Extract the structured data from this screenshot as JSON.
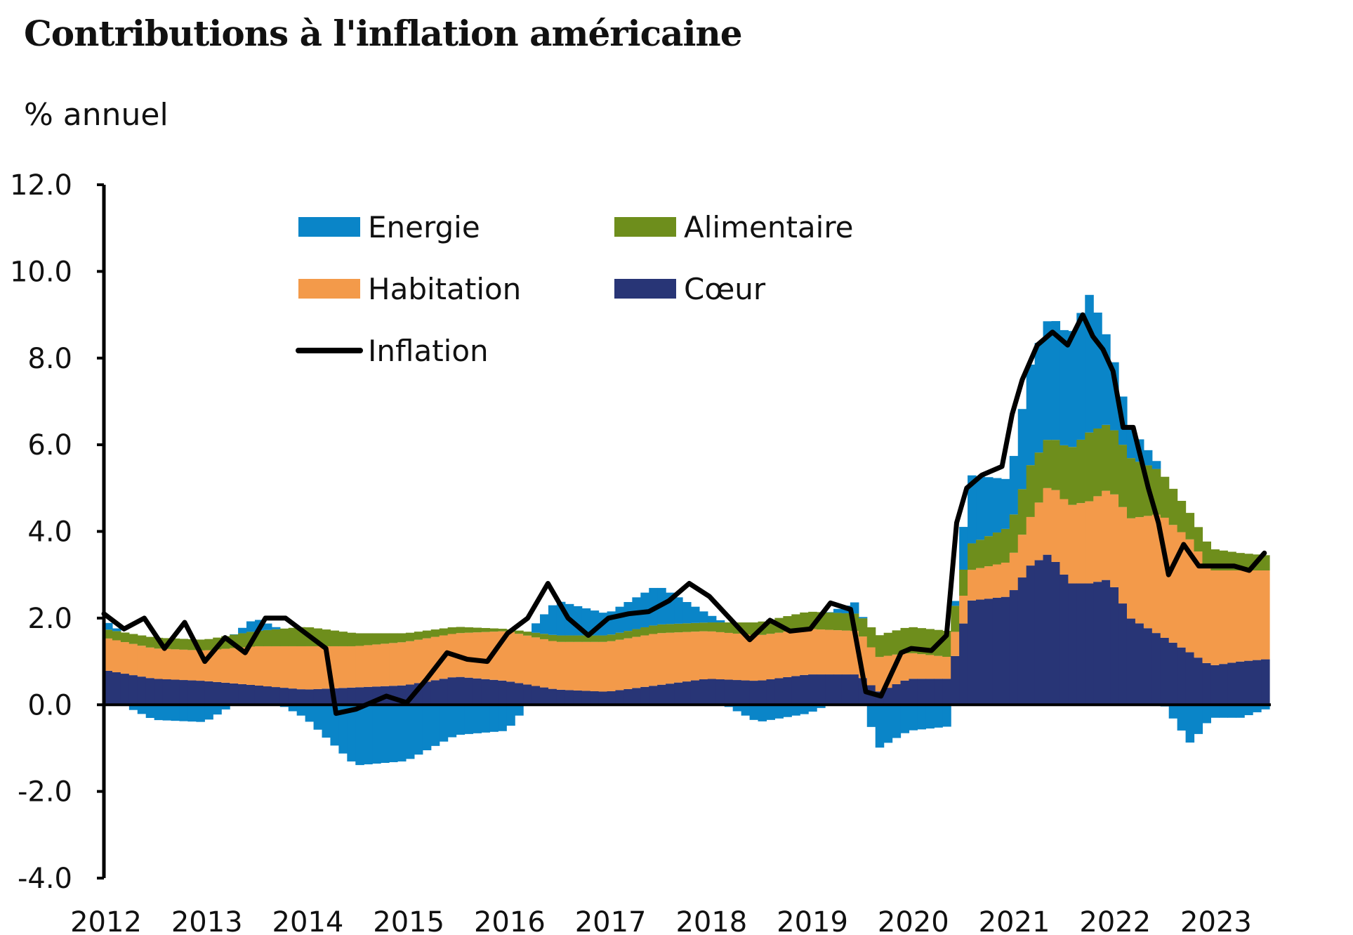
{
  "chart_data": {
    "type": "bar",
    "title": "Contributions à l'inflation américaine",
    "unit": "% annuel",
    "ylim": [
      -4.0,
      12.0
    ],
    "yticks": [
      "-4.0",
      "-2.0",
      "0.0",
      "2.0",
      "4.0",
      "6.0",
      "8.0",
      "10.0",
      "12.0"
    ],
    "xlim": [
      2012.0,
      2023.55
    ],
    "xticks": [
      "2012",
      "2013",
      "2014",
      "2015",
      "2016",
      "2017",
      "2018",
      "2019",
      "2020",
      "2021",
      "2022",
      "2023"
    ],
    "stacked": true,
    "legend_position": "top",
    "grid": false,
    "colors": {
      "energie": "#0a85c8",
      "alimentaire": "#6e8e1c",
      "habitation": "#f39a4a",
      "coeur": "#283576",
      "inflation": "#000000"
    },
    "series": [
      {
        "key": "coeur",
        "name": "Cœur",
        "x": [
          2012,
          2012.5,
          2013,
          2013.5,
          2014,
          2014.5,
          2015,
          2015.5,
          2016,
          2016.5,
          2017,
          2017.5,
          2018,
          2018.5,
          2019,
          2019.5,
          2019.7,
          2020,
          2020.4,
          2020.6,
          2021,
          2021.2,
          2021.4,
          2021.6,
          2021.8,
          2022,
          2022.2,
          2022.5,
          2022.8,
          2023,
          2023.3,
          2023.55
        ],
        "values": [
          0.8,
          0.6,
          0.55,
          0.45,
          0.35,
          0.4,
          0.45,
          0.65,
          0.55,
          0.35,
          0.3,
          0.45,
          0.6,
          0.55,
          0.7,
          0.7,
          0.3,
          0.6,
          0.6,
          2.4,
          2.5,
          3.2,
          3.5,
          2.8,
          2.8,
          2.9,
          2.0,
          1.6,
          1.2,
          0.9,
          1.0,
          1.05
        ]
      },
      {
        "key": "habitation",
        "name": "Habitation",
        "x": [
          2012,
          2012.5,
          2013,
          2013.5,
          2014,
          2014.5,
          2015,
          2015.5,
          2016,
          2016.5,
          2017,
          2017.5,
          2018,
          2018.5,
          2019,
          2019.5,
          2019.7,
          2020,
          2020.4,
          2020.6,
          2021,
          2021.2,
          2021.4,
          2021.6,
          2021.8,
          2022,
          2022.2,
          2022.5,
          2022.8,
          2023,
          2023.3,
          2023.55
        ],
        "values": [
          0.75,
          0.7,
          0.7,
          0.9,
          1.0,
          0.95,
          1.0,
          1.0,
          1.15,
          1.1,
          1.15,
          1.2,
          1.1,
          1.05,
          1.05,
          1.0,
          0.8,
          0.6,
          0.5,
          0.7,
          0.8,
          1.1,
          1.6,
          1.8,
          1.9,
          2.1,
          2.3,
          2.8,
          2.6,
          2.2,
          2.1,
          2.05
        ]
      },
      {
        "key": "alimentaire",
        "name": "Alimentaire",
        "x": [
          2012,
          2012.5,
          2013,
          2013.5,
          2014,
          2014.5,
          2015,
          2015.5,
          2016,
          2016.5,
          2017,
          2017.5,
          2018,
          2018.5,
          2019,
          2019.5,
          2019.7,
          2020,
          2020.4,
          2020.6,
          2021,
          2021.2,
          2021.4,
          2021.6,
          2021.8,
          2022,
          2022.2,
          2022.5,
          2022.8,
          2023,
          2023.3,
          2023.55
        ],
        "values": [
          0.2,
          0.25,
          0.25,
          0.35,
          0.45,
          0.3,
          0.2,
          0.15,
          0.05,
          0.15,
          0.15,
          0.2,
          0.2,
          0.3,
          0.4,
          0.4,
          0.5,
          0.6,
          0.6,
          0.6,
          0.8,
          1.2,
          1.1,
          1.3,
          1.6,
          1.5,
          1.4,
          1.0,
          0.6,
          0.5,
          0.4,
          0.35
        ]
      },
      {
        "key": "energie",
        "name": "Energie",
        "x": [
          2012,
          2012.5,
          2013,
          2013.5,
          2014,
          2014.5,
          2015,
          2015.5,
          2016,
          2016.5,
          2017,
          2017.5,
          2018,
          2018.5,
          2019,
          2019.5,
          2019.7,
          2020,
          2020.4,
          2020.6,
          2021,
          2021.2,
          2021.4,
          2021.6,
          2021.8,
          2022,
          2022.2,
          2022.5,
          2022.8,
          2023,
          2023.3,
          2023.55
        ],
        "values": [
          0.2,
          -0.35,
          -0.4,
          0.3,
          -0.3,
          -1.4,
          -1.3,
          -0.7,
          -0.6,
          0.8,
          0.5,
          0.9,
          0.2,
          -0.4,
          -0.2,
          0.3,
          -1.0,
          -0.6,
          -0.5,
          1.6,
          1.1,
          2.3,
          2.8,
          2.6,
          3.2,
          1.8,
          0.7,
          0.1,
          -0.9,
          -0.3,
          -0.3,
          -0.1
        ]
      },
      {
        "key": "inflation",
        "name": "Inflation",
        "type": "line",
        "x": [
          2012,
          2012.2,
          2012.4,
          2012.6,
          2012.8,
          2013,
          2013.2,
          2013.4,
          2013.6,
          2013.8,
          2014,
          2014.2,
          2014.3,
          2014.5,
          2014.8,
          2015,
          2015.2,
          2015.4,
          2015.6,
          2015.8,
          2016,
          2016.2,
          2016.4,
          2016.6,
          2016.8,
          2017,
          2017.2,
          2017.4,
          2017.6,
          2017.8,
          2018,
          2018.2,
          2018.4,
          2018.6,
          2018.8,
          2019,
          2019.2,
          2019.4,
          2019.55,
          2019.7,
          2019.9,
          2020,
          2020.2,
          2020.35,
          2020.45,
          2020.55,
          2020.7,
          2020.9,
          2021,
          2021.1,
          2021.25,
          2021.4,
          2021.55,
          2021.7,
          2021.8,
          2021.9,
          2022,
          2022.1,
          2022.2,
          2022.35,
          2022.45,
          2022.55,
          2022.7,
          2022.85,
          2023,
          2023.2,
          2023.35,
          2023.5
        ],
        "values": [
          2.1,
          1.75,
          2.0,
          1.3,
          1.9,
          1.0,
          1.55,
          1.2,
          2.0,
          2.0,
          1.65,
          1.3,
          -0.2,
          -0.1,
          0.2,
          0.05,
          0.6,
          1.2,
          1.05,
          1.0,
          1.65,
          2.0,
          2.8,
          2.0,
          1.6,
          2.0,
          2.1,
          2.15,
          2.4,
          2.8,
          2.5,
          2.0,
          1.5,
          1.95,
          1.7,
          1.75,
          2.35,
          2.2,
          0.3,
          0.2,
          1.2,
          1.3,
          1.25,
          1.6,
          4.2,
          5.0,
          5.3,
          5.5,
          6.7,
          7.5,
          8.3,
          8.6,
          8.3,
          9.0,
          8.5,
          8.2,
          7.7,
          6.4,
          6.4,
          5.0,
          4.2,
          3.0,
          3.7,
          3.2,
          3.2,
          3.2,
          3.1,
          3.5
        ]
      }
    ]
  }
}
